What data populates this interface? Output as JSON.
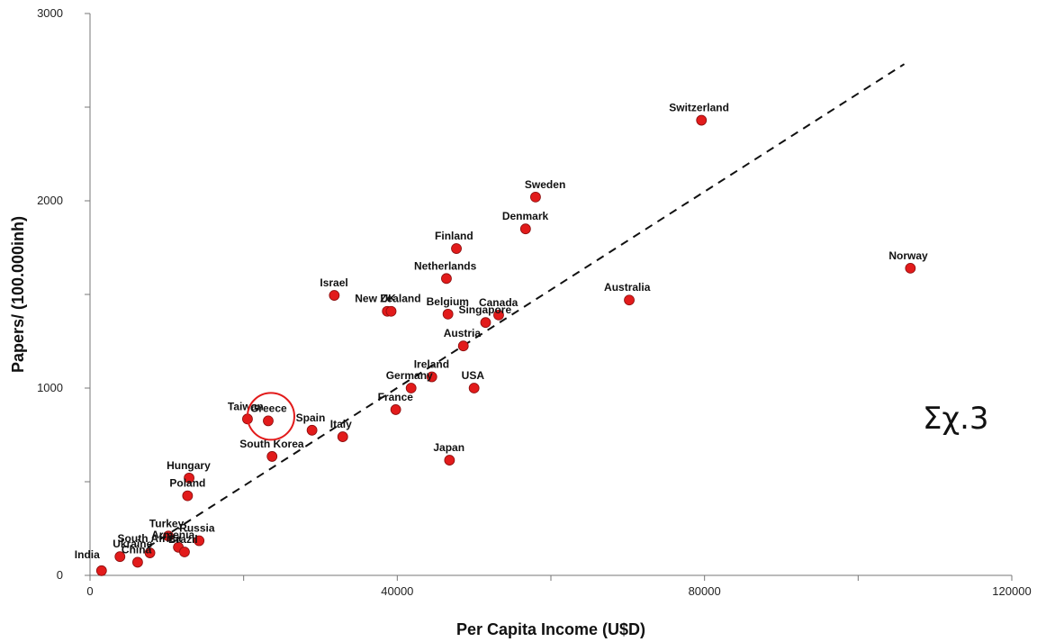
{
  "chart_data": {
    "type": "scatter",
    "xlabel": "Per Capita Income (U$D)",
    "ylabel": "Papers/ (100.000inh)",
    "xlim": [
      0,
      120000
    ],
    "ylim": [
      0,
      3000
    ],
    "x_ticks": [
      "0",
      "40000",
      "80000",
      "120000"
    ],
    "y_ticks": [
      "0",
      "1000",
      "2000",
      "3000"
    ],
    "grid": false,
    "point_color": "#e21b1b",
    "trendline": {
      "style": "dashed",
      "x": [
        7500,
        106000
      ],
      "y": [
        150,
        2730
      ]
    },
    "highlight": {
      "label": "Greece",
      "shape": "circle",
      "color": "#e21b1b"
    },
    "annotation": "Σχ.3",
    "points": [
      {
        "label": "India",
        "x": 1500,
        "y": 25
      },
      {
        "label": "Ukraine",
        "x": 3900,
        "y": 100
      },
      {
        "label": "China",
        "x": 6200,
        "y": 70
      },
      {
        "label": "South Africa",
        "x": 7800,
        "y": 120
      },
      {
        "label": "Turkey",
        "x": 10200,
        "y": 210
      },
      {
        "label": "Armenia",
        "x": 11500,
        "y": 150
      },
      {
        "label": "Brazil",
        "x": 12300,
        "y": 125
      },
      {
        "label": "Russia",
        "x": 14200,
        "y": 185
      },
      {
        "label": "Poland",
        "x": 12700,
        "y": 425
      },
      {
        "label": "Hungary",
        "x": 12900,
        "y": 520
      },
      {
        "label": "Taiwan",
        "x": 20500,
        "y": 835
      },
      {
        "label": "Greece",
        "x": 23200,
        "y": 825
      },
      {
        "label": "South Korea",
        "x": 23700,
        "y": 635
      },
      {
        "label": "Spain",
        "x": 28900,
        "y": 775
      },
      {
        "label": "Italy",
        "x": 32900,
        "y": 740
      },
      {
        "label": "Israel",
        "x": 31800,
        "y": 1495
      },
      {
        "label": "New Zealand",
        "x": 38700,
        "y": 1410
      },
      {
        "label": "UK",
        "x": 39200,
        "y": 1410
      },
      {
        "label": "France",
        "x": 39800,
        "y": 885
      },
      {
        "label": "Germany",
        "x": 41800,
        "y": 1000
      },
      {
        "label": "Ireland",
        "x": 44500,
        "y": 1060
      },
      {
        "label": "Belgium",
        "x": 46600,
        "y": 1395
      },
      {
        "label": "Netherlands",
        "x": 46400,
        "y": 1585
      },
      {
        "label": "Finland",
        "x": 47700,
        "y": 1745
      },
      {
        "label": "Japan",
        "x": 46800,
        "y": 615
      },
      {
        "label": "USA",
        "x": 50000,
        "y": 1000
      },
      {
        "label": "Austria",
        "x": 48600,
        "y": 1225
      },
      {
        "label": "Singapore",
        "x": 51500,
        "y": 1350
      },
      {
        "label": "Canada",
        "x": 53200,
        "y": 1390
      },
      {
        "label": "Denmark",
        "x": 56700,
        "y": 1850
      },
      {
        "label": "Sweden",
        "x": 58000,
        "y": 2020
      },
      {
        "label": "Australia",
        "x": 70200,
        "y": 1470
      },
      {
        "label": "Switzerland",
        "x": 79600,
        "y": 2430
      },
      {
        "label": "Norway",
        "x": 106800,
        "y": 1640
      }
    ]
  }
}
